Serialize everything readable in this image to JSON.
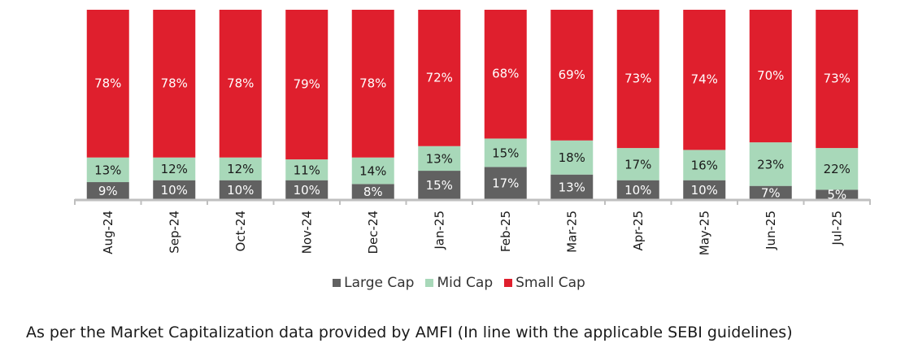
{
  "chart_data": {
    "type": "bar",
    "stacked": true,
    "percent_stacked": true,
    "categories": [
      "Aug-24",
      "Sep-24",
      "Oct-24",
      "Nov-24",
      "Dec-24",
      "Jan-25",
      "Feb-25",
      "Mar-25",
      "Apr-25",
      "May-25",
      "Jun-25",
      "Jul-25"
    ],
    "series": [
      {
        "name": "Large Cap",
        "color": "#616161",
        "values": [
          9,
          10,
          10,
          10,
          8,
          15,
          17,
          13,
          10,
          10,
          7,
          5
        ]
      },
      {
        "name": "Mid Cap",
        "color": "#A8D8B9",
        "values": [
          13,
          12,
          12,
          11,
          14,
          13,
          15,
          18,
          17,
          16,
          23,
          22
        ]
      },
      {
        "name": "Small Cap",
        "color": "#DF1F2D",
        "values": [
          78,
          78,
          78,
          79,
          78,
          72,
          68,
          69,
          73,
          74,
          70,
          73
        ]
      }
    ],
    "value_suffix": "%",
    "ylim": [
      0,
      100
    ],
    "grid": false,
    "legend_position": "bottom"
  },
  "legend": {
    "items": [
      {
        "label": "Large Cap",
        "color": "#616161"
      },
      {
        "label": "Mid Cap",
        "color": "#A8D8B9"
      },
      {
        "label": "Small Cap",
        "color": "#DF1F2D"
      }
    ]
  },
  "footnote": "As per the Market Capitalization data provided by AMFI (In line with the applicable SEBI guidelines)"
}
